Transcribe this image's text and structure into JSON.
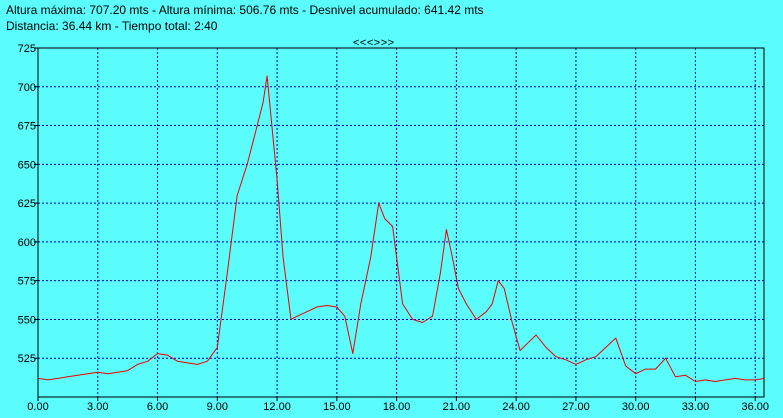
{
  "stats": {
    "line1": "Altura máxima: 707.20 mts - Altura mínima: 506.76 mts - Desnivel acumulado: 641.42 mts",
    "line2": "Distancia: 36.44 km - Tiempo total: 2:40"
  },
  "nav": {
    "arrows": "<<<>>>"
  },
  "colors": {
    "background": "#5afcfc",
    "line": "#ee0000",
    "grid": "#0000cc",
    "axis": "#000000"
  },
  "chart_data": {
    "type": "line",
    "title": "",
    "xlabel": "",
    "ylabel": "",
    "xlim": [
      0,
      36.44
    ],
    "ylim": [
      500,
      725
    ],
    "grid": true,
    "x_tick_labels": [
      "0.00",
      "3.00",
      "6.00",
      "9.00",
      "12.00",
      "15.00",
      "18.00",
      "21.00",
      "24.00",
      "27.00",
      "30.00",
      "33.00",
      "36.00"
    ],
    "y_tick_labels": [
      "525",
      "550",
      "575",
      "600",
      "625",
      "650",
      "675",
      "700",
      "725"
    ],
    "series": [
      {
        "x": [
          0,
          0.5,
          1,
          1.5,
          2,
          2.5,
          3,
          3.5,
          4,
          4.5,
          5,
          5.5,
          6,
          6.5,
          7,
          7.5,
          8,
          8.5,
          9,
          9.5,
          10,
          10.5,
          11,
          11.3,
          11.5,
          11.7,
          12,
          12.3,
          12.7,
          13,
          13.5,
          14,
          14.5,
          15,
          15.4,
          15.8,
          16.2,
          16.7,
          17.1,
          17.4,
          17.8,
          18.3,
          18.8,
          19.3,
          19.8,
          20.2,
          20.5,
          20.8,
          21.1,
          21.5,
          22,
          22.5,
          22.8,
          23.1,
          23.4,
          23.8,
          24.2,
          24.6,
          25,
          25.5,
          26,
          26.5,
          27,
          27.5,
          28,
          28.5,
          29,
          29.5,
          30,
          30.5,
          31,
          31.5,
          32,
          32.5,
          33,
          33.5,
          34,
          34.5,
          35,
          35.5,
          36,
          36.44
        ],
        "y": [
          512,
          511,
          512,
          513,
          514,
          515,
          516,
          515,
          516,
          517,
          521,
          523,
          528,
          527,
          523,
          522,
          521,
          523,
          532,
          580,
          630,
          650,
          675,
          690,
          707,
          680,
          640,
          590,
          550,
          552,
          555,
          558,
          559,
          558,
          552,
          528,
          560,
          590,
          625,
          615,
          610,
          560,
          550,
          548,
          552,
          580,
          608,
          590,
          570,
          560,
          550,
          555,
          560,
          575,
          570,
          548,
          530,
          535,
          540,
          532,
          526,
          524,
          521,
          524,
          526,
          532,
          538,
          520,
          515,
          518,
          518,
          525,
          513,
          514,
          510,
          511,
          510,
          511,
          512,
          511,
          511,
          512
        ]
      }
    ]
  }
}
